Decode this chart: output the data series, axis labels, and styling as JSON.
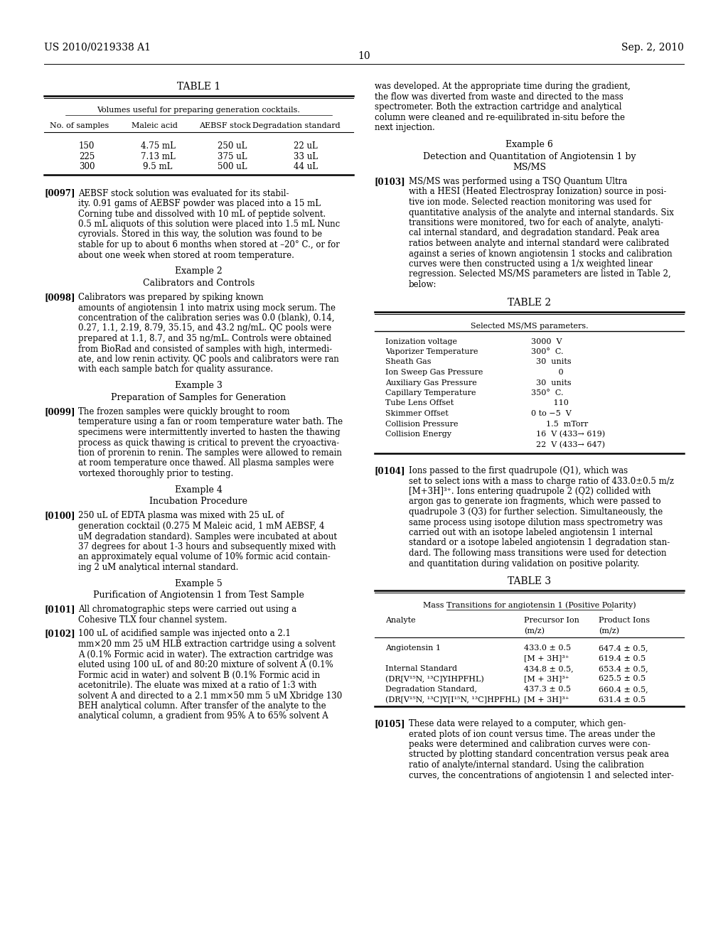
{
  "bg_color": "#ffffff",
  "header_left": "US 2010/0219338 A1",
  "header_right": "Sep. 2, 2010",
  "page_num": "10"
}
